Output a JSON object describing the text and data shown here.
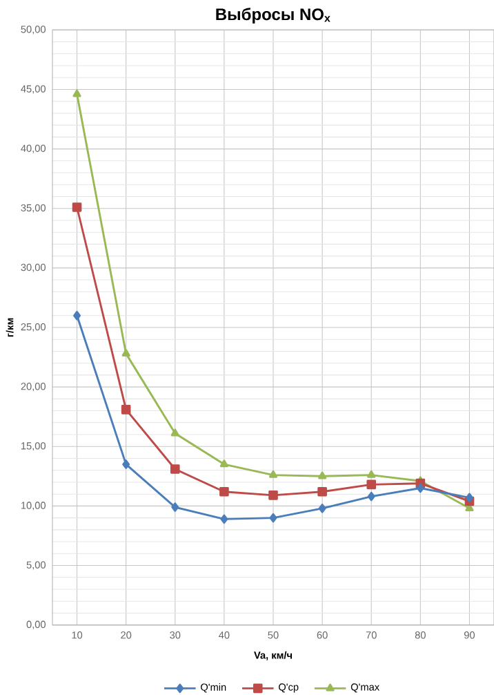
{
  "chart_data": {
    "type": "line",
    "title": "Выбросы NO$_{x}$",
    "xlabel": "Va, км/ч",
    "ylabel": "г/км",
    "categories": [
      "10",
      "20",
      "30",
      "40",
      "50",
      "60",
      "70",
      "80",
      "90"
    ],
    "series": [
      {
        "name": "Q'min",
        "color": "#4a7ebb",
        "marker": "diamond",
        "values": [
          26.0,
          13.5,
          9.9,
          8.9,
          9.0,
          9.8,
          10.8,
          11.5,
          10.7
        ]
      },
      {
        "name": "Q'ср",
        "color": "#be4b48",
        "marker": "square",
        "values": [
          35.1,
          18.1,
          13.1,
          11.2,
          10.9,
          11.2,
          11.8,
          11.9,
          10.4
        ]
      },
      {
        "name": "Q'max",
        "color": "#98b954",
        "marker": "triangle",
        "values": [
          44.6,
          22.8,
          16.1,
          13.5,
          12.6,
          12.5,
          12.6,
          12.1,
          9.8
        ]
      }
    ],
    "ylim": [
      0,
      50
    ],
    "yticks": [
      {
        "value": 0,
        "label": "0,00"
      },
      {
        "value": 5,
        "label": "5,00"
      },
      {
        "value": 10,
        "label": "10,00"
      },
      {
        "value": 15,
        "label": "15,00"
      },
      {
        "value": 20,
        "label": "20,00"
      },
      {
        "value": 25,
        "label": "25,00"
      },
      {
        "value": 30,
        "label": "30,00"
      },
      {
        "value": 35,
        "label": "35,00"
      },
      {
        "value": 40,
        "label": "40,00"
      },
      {
        "value": 45,
        "label": "45,00"
      },
      {
        "value": 50,
        "label": "50,00"
      }
    ],
    "grid": true,
    "legend": "bottom",
    "line_style": "solid"
  }
}
